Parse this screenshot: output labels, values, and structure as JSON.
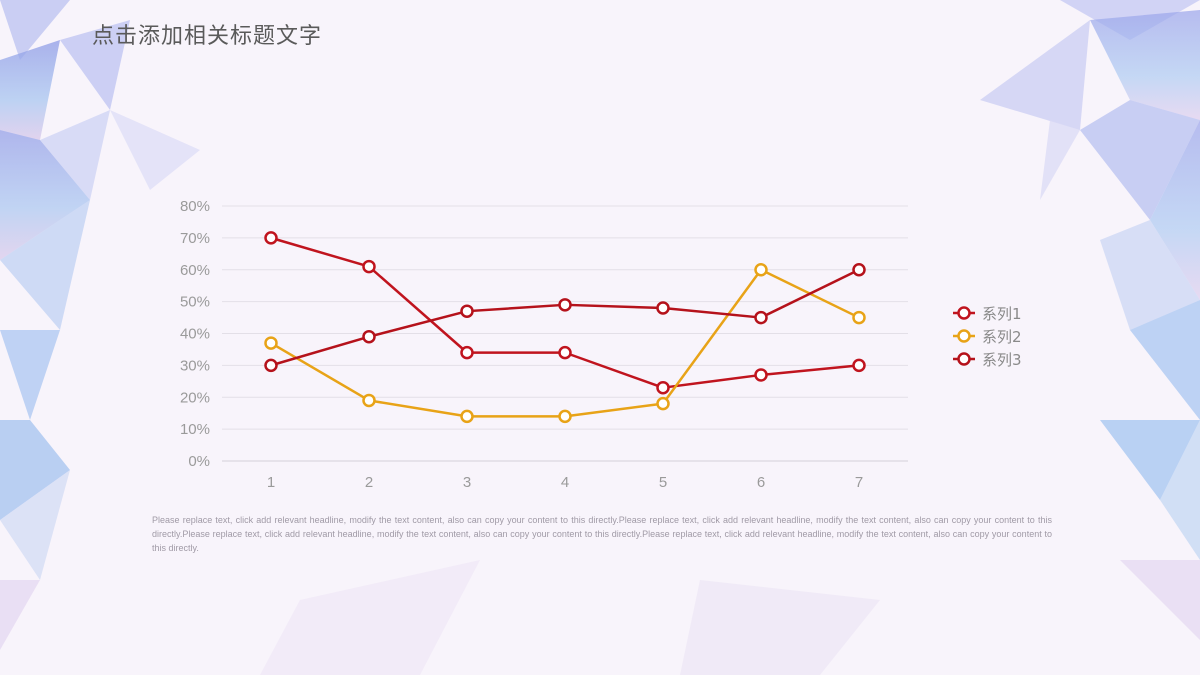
{
  "slide": {
    "title": "点击添加相关标题文字",
    "body": "Please replace text, click add relevant headline, modify the text content, also can copy your content to this directly.Please replace text, click add relevant headline, modify the text content, also can copy your content to this directly.Please replace text, click add relevant headline, modify the text content, also can copy your content to this directly.Please replace text, click add relevant headline, modify the text content, also can copy your content to this directly."
  },
  "chart_data": {
    "type": "line",
    "x": [
      "1",
      "2",
      "3",
      "4",
      "5",
      "6",
      "7"
    ],
    "ylim": [
      0,
      80
    ],
    "y_ticks": [
      "0%",
      "10%",
      "20%",
      "30%",
      "40%",
      "50%",
      "60%",
      "70%",
      "80%"
    ],
    "grid": true,
    "legend": "right",
    "series": [
      {
        "name": "系列1",
        "color": "#c0141e",
        "values": [
          70,
          61,
          34,
          34,
          23,
          27,
          30
        ]
      },
      {
        "name": "系列2",
        "color": "#e8a317",
        "values": [
          37,
          19,
          14,
          14,
          18,
          60,
          45
        ]
      },
      {
        "name": "系列3",
        "color": "#b5121b",
        "values": [
          30,
          39,
          47,
          49,
          48,
          45,
          60
        ]
      }
    ]
  }
}
